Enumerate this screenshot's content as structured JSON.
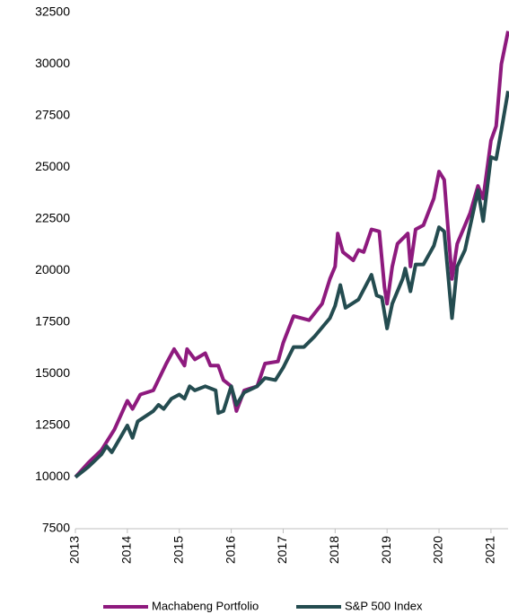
{
  "chart_data": {
    "type": "line",
    "series": [
      {
        "name": "Machabeng Portfolio",
        "color": "#8e1a7e",
        "x": [
          2013,
          2013.25,
          2013.5,
          2013.75,
          2014,
          2014.1,
          2014.25,
          2014.5,
          2014.75,
          2014.9,
          2015.1,
          2015.15,
          2015.3,
          2015.5,
          2015.6,
          2015.75,
          2015.85,
          2016,
          2016.1,
          2016.25,
          2016.5,
          2016.65,
          2016.9,
          2017,
          2017.2,
          2017.5,
          2017.75,
          2017.9,
          2018,
          2018.05,
          2018.15,
          2018.35,
          2018.45,
          2018.55,
          2018.7,
          2018.85,
          2018.95,
          2019,
          2019.1,
          2019.2,
          2019.4,
          2019.45,
          2019.55,
          2019.7,
          2019.9,
          2020,
          2020.1,
          2020.25,
          2020.35,
          2020.6,
          2020.75,
          2020.85,
          2021,
          2021.1,
          2021.2,
          2021.33
        ],
        "values": [
          10000,
          10700,
          11300,
          12300,
          13700,
          13300,
          14000,
          14200,
          15500,
          16200,
          15400,
          16200,
          15700,
          16000,
          15400,
          15400,
          14700,
          14400,
          13200,
          14200,
          14400,
          15500,
          15600,
          16500,
          17800,
          17600,
          18400,
          19600,
          20200,
          21800,
          20900,
          20500,
          21000,
          20900,
          22000,
          21900,
          19200,
          18400,
          20200,
          21300,
          21800,
          20200,
          22000,
          22200,
          23500,
          24800,
          24400,
          19600,
          21300,
          22800,
          24100,
          23500,
          26300,
          27000,
          30000,
          31600
        ]
      },
      {
        "name": "S&P 500 Index",
        "color": "#244c50",
        "x": [
          2013,
          2013.25,
          2013.5,
          2013.6,
          2013.7,
          2014,
          2014.1,
          2014.2,
          2014.5,
          2014.6,
          2014.7,
          2014.85,
          2015,
          2015.1,
          2015.2,
          2015.3,
          2015.5,
          2015.7,
          2015.75,
          2015.85,
          2016,
          2016.1,
          2016.25,
          2016.5,
          2016.65,
          2016.85,
          2017,
          2017.2,
          2017.4,
          2017.6,
          2017.9,
          2018,
          2018.1,
          2018.2,
          2018.45,
          2018.7,
          2018.8,
          2018.9,
          2019,
          2019.1,
          2019.3,
          2019.35,
          2019.45,
          2019.55,
          2019.7,
          2019.9,
          2020,
          2020.1,
          2020.25,
          2020.35,
          2020.5,
          2020.75,
          2020.85,
          2021,
          2021.1,
          2021.2,
          2021.33
        ],
        "values": [
          10000,
          10500,
          11100,
          11500,
          11200,
          12500,
          11900,
          12700,
          13200,
          13500,
          13300,
          13800,
          14000,
          13800,
          14400,
          14200,
          14400,
          14200,
          13100,
          13200,
          14400,
          13500,
          14100,
          14400,
          14800,
          14700,
          15300,
          16300,
          16300,
          16800,
          17700,
          18300,
          19300,
          18200,
          18600,
          19800,
          18800,
          18700,
          17200,
          18400,
          19600,
          20100,
          19000,
          20300,
          20300,
          21200,
          22100,
          21900,
          17700,
          20200,
          21000,
          23900,
          22400,
          25500,
          25400,
          26800,
          28700
        ]
      }
    ],
    "xlim": [
      2013,
      2021.33
    ],
    "xticks": [
      2013,
      2014,
      2015,
      2016,
      2017,
      2018,
      2019,
      2020,
      2021
    ],
    "ylim": [
      7500,
      32500
    ],
    "yticks": [
      7500,
      10000,
      12500,
      15000,
      17500,
      20000,
      22500,
      25000,
      27500,
      30000,
      32500
    ],
    "legend": "bottom"
  }
}
